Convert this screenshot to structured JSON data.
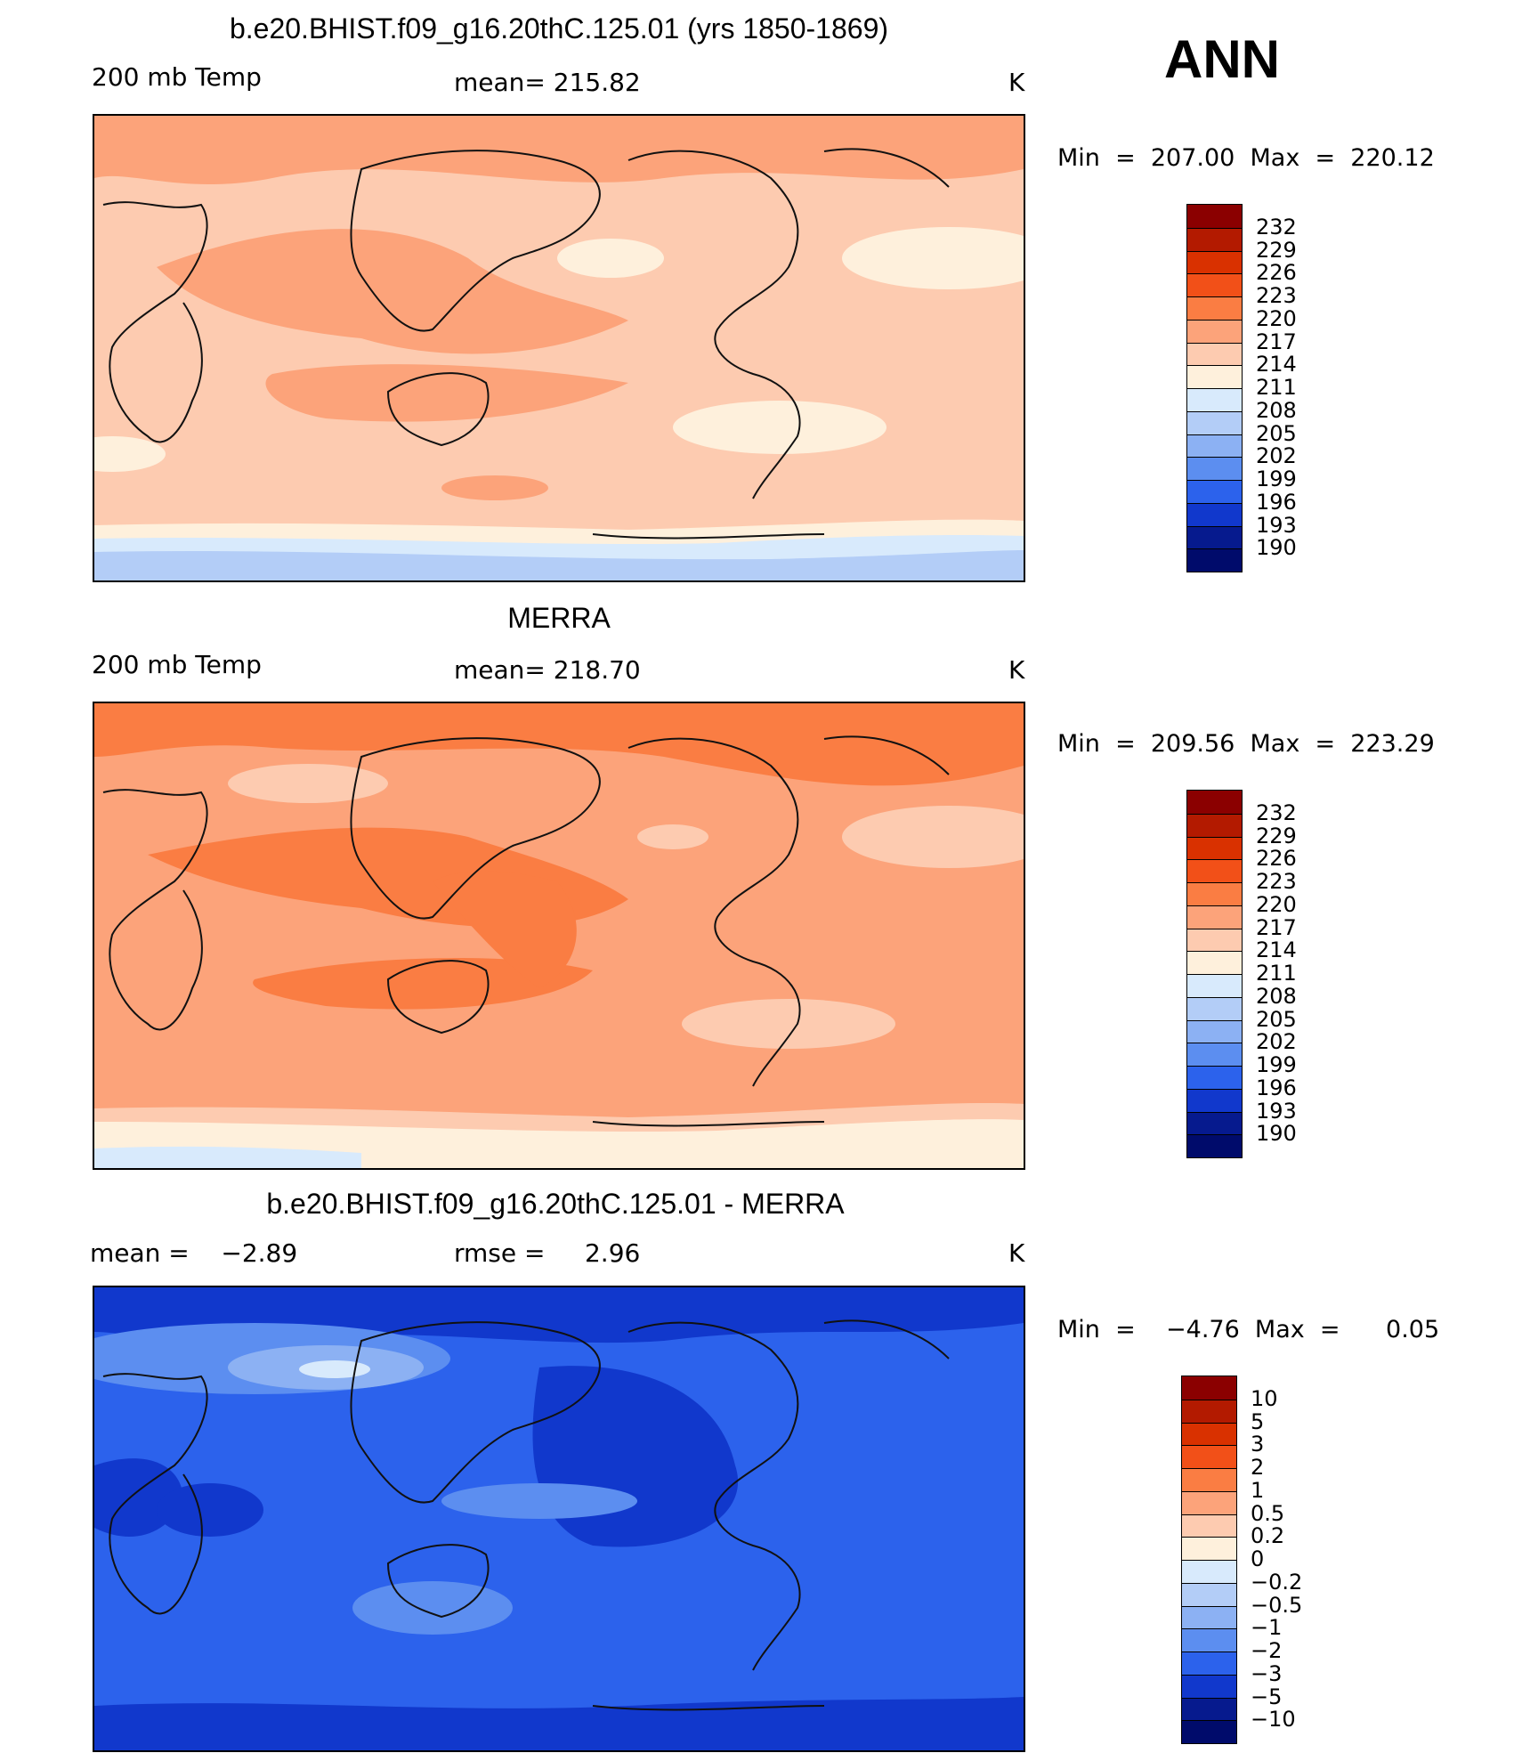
{
  "season": "ANN",
  "colors": {
    "ocean_fill": "#fcd3bc",
    "land_line": "#111111"
  },
  "panels": [
    {
      "title": "b.e20.BHIST.f09_g16.20thC.125.01 (yrs 1850-1869)",
      "left_label": "200 mb Temp",
      "center_label": "mean= 215.82",
      "units": "K",
      "min_max": "Min  =  207.00  Max  =  220.12",
      "colorbar": {
        "labels": [
          "232",
          "229",
          "226",
          "223",
          "220",
          "217",
          "214",
          "211",
          "208",
          "205",
          "202",
          "199",
          "196",
          "193",
          "190"
        ],
        "colors": [
          "#8b0000",
          "#b31a00",
          "#d93100",
          "#f25018",
          "#fa7d43",
          "#fca37a",
          "#fdcbb0",
          "#fef0dc",
          "#d8eafc",
          "#b3cdf7",
          "#8cb1f3",
          "#5c8ef0",
          "#2c62ec",
          "#1138cc",
          "#061a8e",
          "#000b6b"
        ]
      },
      "map_style": {
        "background": "#fcc9ab",
        "blobs": [
          {
            "name": "region-warm-eurasia",
            "color": "#fba982",
            "shape": "ellipse",
            "values": "asia"
          },
          {
            "name": "region-cold-antarctic",
            "color": "#d9e9fc"
          },
          {
            "name": "region-colder-antarctic",
            "color": "#b4cbf5"
          },
          {
            "name": "region-pale-subtropics",
            "color": "#fde7d6"
          }
        ]
      }
    },
    {
      "title": "MERRA",
      "left_label": "200 mb Temp",
      "center_label": "mean= 218.70",
      "units": "K",
      "min_max": "Min  =  209.56  Max  =  223.29",
      "colorbar": {
        "labels": [
          "232",
          "229",
          "226",
          "223",
          "220",
          "217",
          "214",
          "211",
          "208",
          "205",
          "202",
          "199",
          "196",
          "193",
          "190"
        ],
        "colors": [
          "#8b0000",
          "#b31a00",
          "#d93100",
          "#f25018",
          "#fa7d43",
          "#fca37a",
          "#fdcbb0",
          "#fef0dc",
          "#d8eafc",
          "#b3cdf7",
          "#8cb1f3",
          "#5c8ef0",
          "#2c62ec",
          "#1138cc",
          "#061a8e",
          "#000b6b"
        ]
      }
    },
    {
      "title": "b.e20.BHIST.f09_g16.20thC.125.01 - MERRA",
      "left_label": "mean =    −2.89",
      "center_label": "rmse =     2.96",
      "units": "K",
      "min_max": "Min  =    −4.76  Max  =      0.05",
      "colorbar": {
        "labels": [
          "10",
          "5",
          "3",
          "2",
          "1",
          "0.5",
          "0.2",
          "0",
          "−0.2",
          "−0.5",
          "−1",
          "−2",
          "−3",
          "−5",
          "−10"
        ],
        "colors": [
          "#8b0000",
          "#b31a00",
          "#d93100",
          "#f25018",
          "#fa7d43",
          "#fca37a",
          "#fdcbb0",
          "#fef0dc",
          "#d8eafc",
          "#b3cdf7",
          "#8cb1f3",
          "#5c8ef0",
          "#2c62ec",
          "#1138cc",
          "#061a8e",
          "#000b6b"
        ]
      }
    }
  ]
}
